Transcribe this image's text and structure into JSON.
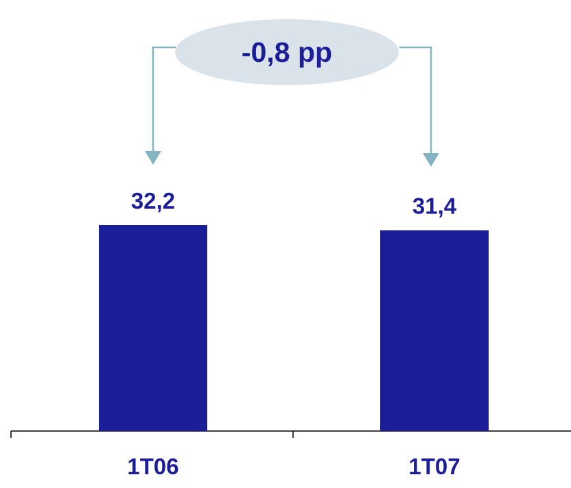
{
  "chart_data": {
    "type": "bar",
    "categories": [
      "1T06",
      "1T07"
    ],
    "values": [
      32.2,
      31.4
    ],
    "value_labels": [
      "32,2",
      "31,4"
    ],
    "title": "",
    "xlabel": "",
    "ylabel": "",
    "ylim": [
      0,
      45
    ],
    "grid": false,
    "annotation": {
      "text": "-0,8 pp",
      "type": "difference-callout",
      "from_category": "1T06",
      "to_category": "1T07"
    }
  },
  "colors": {
    "bar": "#1b1e96",
    "text": "#1b1e96",
    "bubble": "#dae3ea",
    "connector": "#82b4c1",
    "axis": "#000000"
  }
}
